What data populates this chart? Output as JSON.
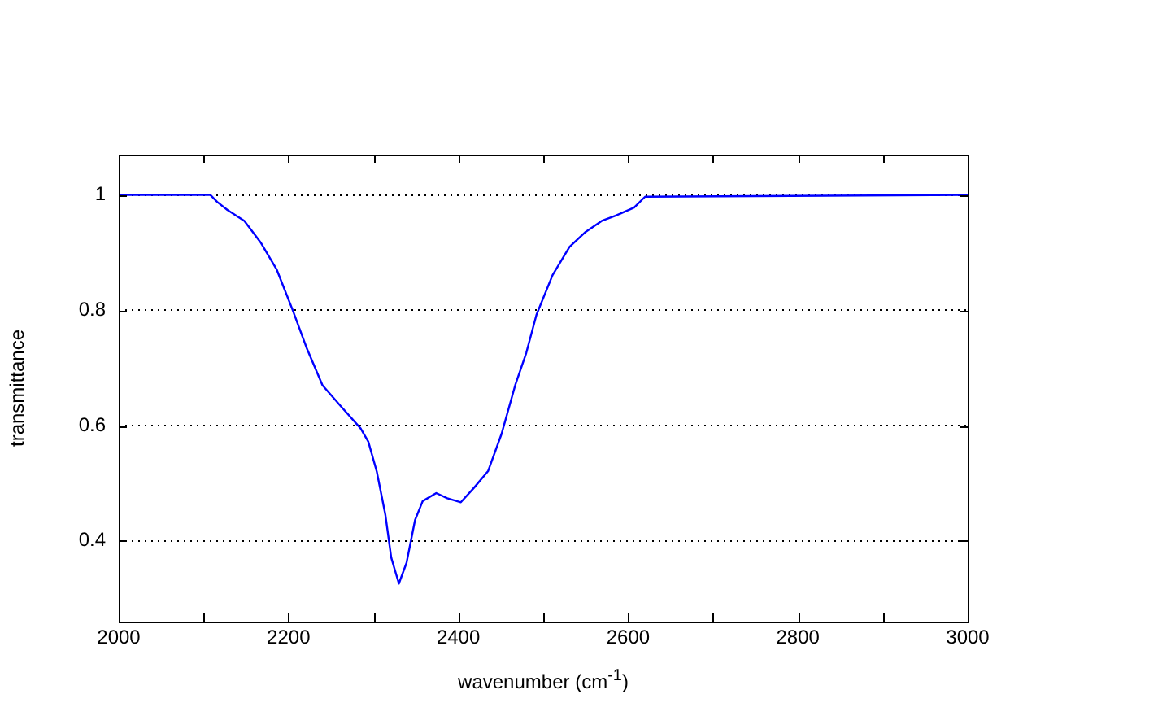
{
  "chart_data": {
    "type": "line",
    "xlabel": "wavenumber (cm$^{-1}$)",
    "ylabel": "transmittance",
    "xlim": [
      2000,
      3000
    ],
    "ylim": [
      0.26,
      1.07
    ],
    "xticks": [
      2000,
      {
        "value": 2100,
        "label": null
      },
      2200,
      {
        "value": 2300,
        "label": null
      },
      2400,
      {
        "value": 2500,
        "label": null
      },
      2600,
      {
        "value": 2700,
        "label": null
      },
      2800,
      {
        "value": 2900,
        "label": null
      },
      3000
    ],
    "yticks": [
      0.4,
      0.6,
      0.8,
      1
    ],
    "grid": "y",
    "legend": false,
    "marker": "none",
    "line_style": "solid",
    "series": [
      {
        "color": "#0000ff",
        "x": [
          2000,
          2108,
          2116,
          2128,
          2148,
          2167,
          2186,
          2205,
          2221,
          2240,
          2262,
          2285,
          2294,
          2304,
          2314,
          2321,
          2330,
          2339,
          2349,
          2358,
          2374,
          2387,
          2403,
          2419,
          2435,
          2451,
          2467,
          2480,
          2492,
          2511,
          2531,
          2550,
          2569,
          2585,
          2607,
          2620,
          3000
        ],
        "values": [
          1,
          1,
          0.988,
          0.974,
          0.955,
          0.918,
          0.871,
          0.8,
          0.736,
          0.67,
          0.633,
          0.595,
          0.572,
          0.52,
          0.446,
          0.371,
          0.326,
          0.362,
          0.436,
          0.469,
          0.483,
          0.474,
          0.467,
          0.493,
          0.521,
          0.586,
          0.67,
          0.726,
          0.792,
          0.861,
          0.91,
          0.936,
          0.955,
          0.964,
          0.978,
          0.997,
          1
        ]
      }
    ]
  }
}
